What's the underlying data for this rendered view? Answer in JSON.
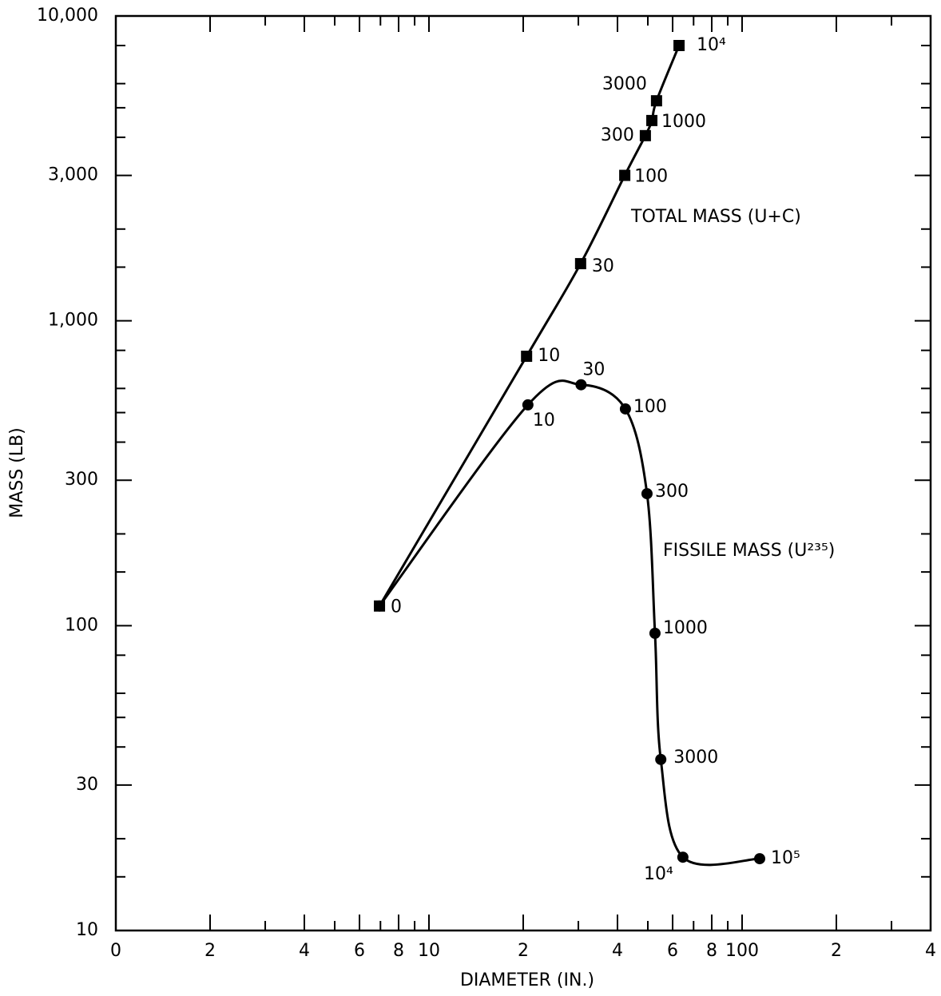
{
  "chart_data": {
    "type": "scatter-line",
    "x_label": "DIAMETER (IN.)",
    "y_label": "MASS (LB)",
    "log_x": true,
    "log_y": true,
    "xlim": [
      1,
      400
    ],
    "xticks": [
      {
        "value": 1,
        "label": "0"
      },
      2,
      4,
      6,
      8,
      10,
      {
        "value": 20,
        "label": "2"
      },
      {
        "value": 40,
        "label": "4"
      },
      {
        "value": 60,
        "label": "6"
      },
      {
        "value": 80,
        "label": "8"
      },
      100,
      {
        "value": 200,
        "label": "2"
      },
      {
        "value": 400,
        "label": "4"
      }
    ],
    "x_minor_ticks": [
      3,
      5,
      7,
      9,
      30,
      50,
      70,
      90,
      300
    ],
    "ylim": [
      10,
      10000
    ],
    "yticks": [
      10,
      30,
      100,
      300,
      {
        "value": 1000,
        "label": "1,000"
      },
      {
        "value": 3000,
        "label": "3,000"
      },
      {
        "value": 10000,
        "label": "10,000"
      }
    ],
    "y_minor_ticks": [
      15,
      20,
      40,
      50,
      60,
      80,
      150,
      200,
      400,
      500,
      600,
      800,
      1500,
      2000,
      4000,
      5000,
      6000,
      8000
    ],
    "series": [
      {
        "name": "TOTAL MASS (U+C)",
        "marker": "square",
        "color": "#000000",
        "x": [
          6.95,
          20.5,
          30.5,
          42.2,
          49.1,
          51.5,
          53.3,
          62.9
        ],
        "values": [
          116,
          765,
          1540,
          3000,
          4050,
          4540,
          5270,
          8000
        ],
        "point_labels": [
          null,
          "10",
          "30",
          "100",
          "300",
          "1000",
          "3000",
          "10⁴"
        ]
      },
      {
        "name": "FISSILE MASS (U²³⁵)",
        "marker": "circle",
        "color": "#000000",
        "x": [
          6.95,
          20.7,
          30.6,
          42.4,
          49.7,
          52.7,
          55.0,
          64.7,
          113.8
        ],
        "values": [
          116,
          530,
          617,
          514,
          271,
          94.4,
          36.4,
          17.4,
          17.2
        ],
        "point_labels": [
          "0",
          "10",
          "30",
          "100",
          "300",
          "1000",
          "3000",
          "10⁴",
          "10⁵"
        ]
      }
    ]
  }
}
